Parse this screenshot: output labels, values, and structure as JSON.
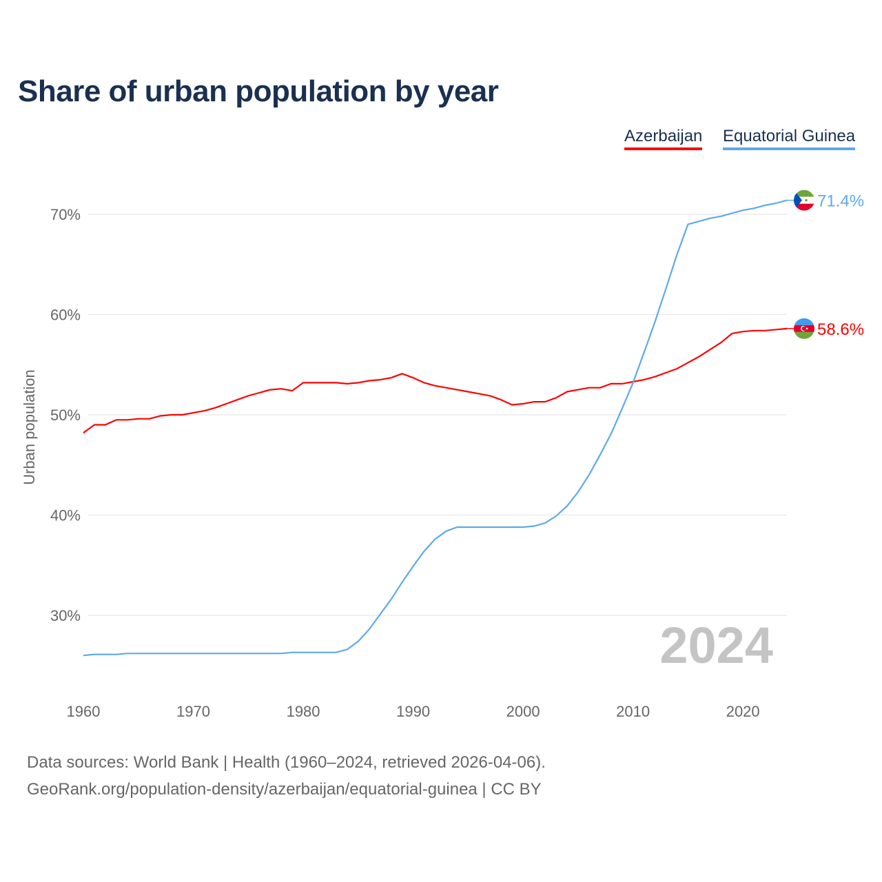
{
  "chart_data": {
    "type": "line",
    "title": "Share of urban population by year",
    "xlabel": "",
    "ylabel": "Urban population",
    "xlim": [
      1960,
      2024
    ],
    "ylim": [
      23,
      73
    ],
    "grid": true,
    "legend_position": "top-right",
    "x_ticks": [
      1960,
      1970,
      1980,
      1990,
      2000,
      2010,
      2020
    ],
    "y_ticks": [
      30,
      40,
      50,
      60,
      70
    ],
    "y_tick_labels": [
      "30%",
      "40%",
      "50%",
      "60%",
      "70%"
    ],
    "year_watermark": "2024",
    "x": [
      1960,
      1961,
      1962,
      1963,
      1964,
      1965,
      1966,
      1967,
      1968,
      1969,
      1970,
      1971,
      1972,
      1973,
      1974,
      1975,
      1976,
      1977,
      1978,
      1979,
      1980,
      1981,
      1982,
      1983,
      1984,
      1985,
      1986,
      1987,
      1988,
      1989,
      1990,
      1991,
      1992,
      1993,
      1994,
      1995,
      1996,
      1997,
      1998,
      1999,
      2000,
      2001,
      2002,
      2003,
      2004,
      2005,
      2006,
      2007,
      2008,
      2009,
      2010,
      2011,
      2012,
      2013,
      2014,
      2015,
      2016,
      2017,
      2018,
      2019,
      2020,
      2021,
      2022,
      2023,
      2024
    ],
    "series": [
      {
        "name": "Azerbaijan",
        "color": "#ff0000",
        "end_label": "58.6%",
        "flag": "azerbaijan-flag",
        "values": [
          48.2,
          49.0,
          49.0,
          49.5,
          49.5,
          49.6,
          49.6,
          49.9,
          50.0,
          50.0,
          50.2,
          50.4,
          50.7,
          51.1,
          51.5,
          51.9,
          52.2,
          52.5,
          52.6,
          52.4,
          53.2,
          53.2,
          53.2,
          53.2,
          53.1,
          53.2,
          53.4,
          53.5,
          53.7,
          54.1,
          53.7,
          53.2,
          52.9,
          52.7,
          52.5,
          52.3,
          52.1,
          51.9,
          51.5,
          51.0,
          51.1,
          51.3,
          51.3,
          51.7,
          52.3,
          52.5,
          52.7,
          52.7,
          53.1,
          53.1,
          53.3,
          53.5,
          53.8,
          54.2,
          54.6,
          55.2,
          55.8,
          56.5,
          57.2,
          58.1,
          58.3,
          58.4,
          58.4,
          58.5,
          58.6
        ]
      },
      {
        "name": "Equatorial Guinea",
        "color": "#5ea8ee",
        "end_label": "71.4%",
        "flag": "equatorial-guinea-flag",
        "values": [
          26.0,
          26.1,
          26.1,
          26.1,
          26.2,
          26.2,
          26.2,
          26.2,
          26.2,
          26.2,
          26.2,
          26.2,
          26.2,
          26.2,
          26.2,
          26.2,
          26.2,
          26.2,
          26.2,
          26.3,
          26.3,
          26.3,
          26.3,
          26.3,
          26.6,
          27.4,
          28.6,
          30.1,
          31.6,
          33.3,
          34.9,
          36.4,
          37.6,
          38.4,
          38.8,
          38.8,
          38.8,
          38.8,
          38.8,
          38.8,
          38.8,
          38.9,
          39.2,
          39.9,
          40.9,
          42.3,
          44.0,
          46.0,
          48.1,
          50.6,
          53.2,
          56.2,
          59.3,
          62.6,
          66.0,
          69.0,
          69.3,
          69.6,
          69.8,
          70.1,
          70.4,
          70.6,
          70.9,
          71.1,
          71.4
        ]
      }
    ]
  },
  "source": {
    "line1": "Data sources: World Bank | Health (1960–2024, retrieved 2026-04-06).",
    "line2": "GeoRank.org/population-density/azerbaijan/equatorial-guinea | CC BY"
  }
}
